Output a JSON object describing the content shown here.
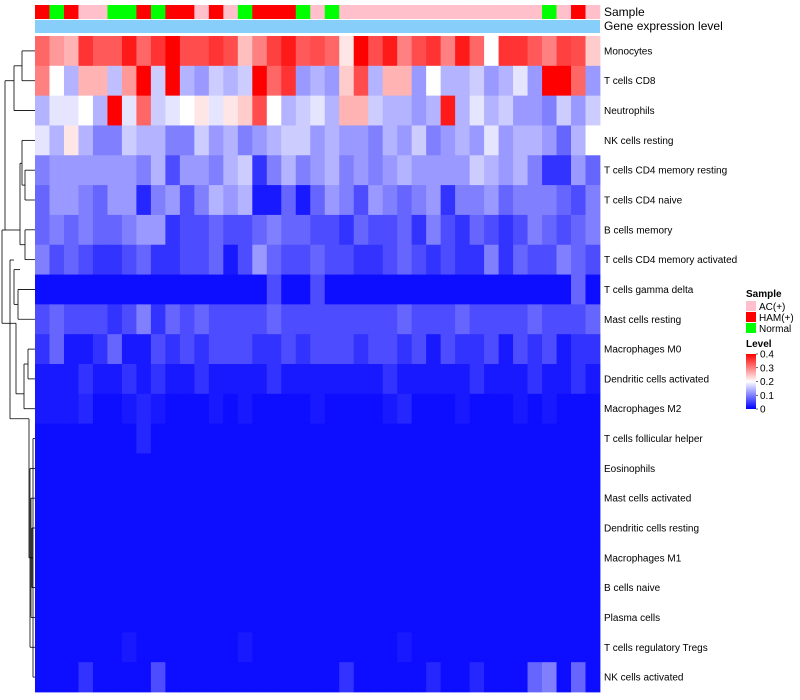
{
  "chart_data": {
    "type": "heatmap",
    "annotation_rows": [
      "Sample",
      "Gene expression level"
    ],
    "sample_legend": {
      "title": "Sample",
      "entries": [
        {
          "label": "AC(+)",
          "color": "#ffc0cb"
        },
        {
          "label": "HAM(+)",
          "color": "#ff0000"
        },
        {
          "label": "Normal",
          "color": "#00ff00"
        }
      ]
    },
    "sample_groups": [
      "HAM(+)",
      "Normal",
      "HAM(+)",
      "AC(+)",
      "AC(+)",
      "Normal",
      "Normal",
      "HAM(+)",
      "Normal",
      "HAM(+)",
      "HAM(+)",
      "AC(+)",
      "HAM(+)",
      "AC(+)",
      "Normal",
      "HAM(+)",
      "HAM(+)",
      "HAM(+)",
      "Normal",
      "AC(+)",
      "Normal",
      "AC(+)",
      "AC(+)",
      "AC(+)",
      "AC(+)",
      "AC(+)",
      "AC(+)",
      "AC(+)",
      "AC(+)",
      "AC(+)",
      "AC(+)",
      "AC(+)",
      "AC(+)",
      "AC(+)",
      "AC(+)",
      "Normal",
      "AC(+)",
      "HAM(+)",
      "AC(+)"
    ],
    "expression_bar_color": "#87cefa",
    "level_legend": {
      "title": "Level",
      "ticks": [
        "0.4",
        "0.3",
        "0.2",
        "0.1",
        "0"
      ],
      "min": 0,
      "max": 0.4,
      "colors": [
        "#0000ff",
        "#ffffff",
        "#ff0000"
      ]
    },
    "rows": [
      {
        "label": "Monocytes",
        "values": [
          0.32,
          0.28,
          0.26,
          0.36,
          0.33,
          0.33,
          0.38,
          0.32,
          0.36,
          0.4,
          0.34,
          0.34,
          0.36,
          0.34,
          0.25,
          0.3,
          0.35,
          0.38,
          0.33,
          0.34,
          0.32,
          0.22,
          0.4,
          0.34,
          0.38,
          0.3,
          0.34,
          0.36,
          0.3,
          0.38,
          0.32,
          0.2,
          0.36,
          0.36,
          0.33,
          0.3,
          0.35,
          0.34,
          0.24
        ]
      },
      {
        "label": "T cells CD8",
        "values": [
          0.3,
          0.2,
          0.14,
          0.26,
          0.26,
          0.15,
          0.28,
          0.4,
          0.16,
          0.4,
          0.14,
          0.12,
          0.16,
          0.14,
          0.16,
          0.4,
          0.32,
          0.36,
          0.12,
          0.14,
          0.12,
          0.24,
          0.34,
          0.14,
          0.26,
          0.26,
          0.12,
          0.2,
          0.14,
          0.14,
          0.16,
          0.12,
          0.14,
          0.18,
          0.12,
          0.4,
          0.4,
          0.32,
          0.12
        ]
      },
      {
        "label": "Neutrophils",
        "values": [
          0.14,
          0.18,
          0.18,
          0.2,
          0.14,
          0.4,
          0.18,
          0.32,
          0.16,
          0.18,
          0.2,
          0.22,
          0.18,
          0.22,
          0.24,
          0.34,
          0.2,
          0.14,
          0.16,
          0.18,
          0.14,
          0.26,
          0.26,
          0.16,
          0.14,
          0.14,
          0.12,
          0.14,
          0.38,
          0.14,
          0.18,
          0.14,
          0.16,
          0.12,
          0.12,
          0.1,
          0.16,
          0.12,
          0.16
        ]
      },
      {
        "label": "NK cells resting",
        "values": [
          0.18,
          0.14,
          0.22,
          0.14,
          0.1,
          0.1,
          0.16,
          0.14,
          0.14,
          0.1,
          0.1,
          0.16,
          0.12,
          0.14,
          0.1,
          0.12,
          0.14,
          0.16,
          0.16,
          0.12,
          0.14,
          0.12,
          0.12,
          0.1,
          0.14,
          0.12,
          0.16,
          0.1,
          0.12,
          0.14,
          0.12,
          0.18,
          0.12,
          0.14,
          0.14,
          0.12,
          0.08,
          0.14,
          0.2
        ]
      },
      {
        "label": "T cells CD4 memory resting",
        "values": [
          0.1,
          0.12,
          0.12,
          0.12,
          0.12,
          0.12,
          0.12,
          0.1,
          0.14,
          0.06,
          0.12,
          0.12,
          0.1,
          0.14,
          0.16,
          0.04,
          0.1,
          0.14,
          0.1,
          0.12,
          0.14,
          0.1,
          0.12,
          0.1,
          0.12,
          0.14,
          0.12,
          0.12,
          0.12,
          0.12,
          0.16,
          0.14,
          0.12,
          0.14,
          0.1,
          0.04,
          0.04,
          0.12,
          0.08
        ]
      },
      {
        "label": "T cells CD4 naive",
        "values": [
          0.08,
          0.12,
          0.12,
          0.1,
          0.08,
          0.12,
          0.12,
          0.03,
          0.1,
          0.12,
          0.06,
          0.1,
          0.14,
          0.12,
          0.14,
          0.02,
          0.02,
          0.08,
          0.02,
          0.08,
          0.12,
          0.1,
          0.06,
          0.12,
          0.1,
          0.08,
          0.1,
          0.12,
          0.04,
          0.1,
          0.1,
          0.12,
          0.08,
          0.1,
          0.1,
          0.1,
          0.08,
          0.06,
          0.1
        ]
      },
      {
        "label": "B cells memory",
        "values": [
          0.08,
          0.1,
          0.08,
          0.1,
          0.08,
          0.08,
          0.1,
          0.12,
          0.12,
          0.04,
          0.06,
          0.06,
          0.08,
          0.06,
          0.06,
          0.08,
          0.1,
          0.08,
          0.08,
          0.06,
          0.06,
          0.04,
          0.08,
          0.06,
          0.06,
          0.08,
          0.04,
          0.1,
          0.06,
          0.04,
          0.08,
          0.06,
          0.04,
          0.06,
          0.1,
          0.08,
          0.06,
          0.08,
          0.1
        ]
      },
      {
        "label": "T cells CD4 memory activated",
        "values": [
          0.1,
          0.06,
          0.08,
          0.06,
          0.04,
          0.04,
          0.06,
          0.08,
          0.04,
          0.04,
          0.06,
          0.06,
          0.08,
          0.02,
          0.06,
          0.12,
          0.08,
          0.06,
          0.06,
          0.08,
          0.06,
          0.06,
          0.04,
          0.04,
          0.06,
          0.08,
          0.06,
          0.04,
          0.06,
          0.04,
          0.04,
          0.1,
          0.04,
          0.08,
          0.06,
          0.06,
          0.1,
          0.08,
          0.06
        ]
      },
      {
        "label": "T cells gamma delta",
        "values": [
          0.01,
          0.01,
          0.01,
          0.01,
          0.01,
          0.01,
          0.01,
          0.01,
          0.01,
          0.01,
          0.01,
          0.01,
          0.01,
          0.01,
          0.01,
          0.01,
          0.06,
          0.01,
          0.01,
          0.06,
          0.01,
          0.01,
          0.01,
          0.01,
          0.01,
          0.01,
          0.01,
          0.01,
          0.01,
          0.01,
          0.01,
          0.01,
          0.01,
          0.01,
          0.01,
          0.01,
          0.01,
          0.08,
          0.01
        ]
      },
      {
        "label": "Mast cells resting",
        "values": [
          0.06,
          0.08,
          0.06,
          0.06,
          0.06,
          0.04,
          0.06,
          0.1,
          0.04,
          0.08,
          0.06,
          0.08,
          0.06,
          0.06,
          0.06,
          0.06,
          0.08,
          0.06,
          0.06,
          0.06,
          0.06,
          0.06,
          0.06,
          0.06,
          0.06,
          0.08,
          0.06,
          0.06,
          0.06,
          0.08,
          0.06,
          0.06,
          0.06,
          0.06,
          0.08,
          0.06,
          0.06,
          0.06,
          0.08
        ]
      },
      {
        "label": "Macrophages M0",
        "values": [
          0.04,
          0.08,
          0.02,
          0.02,
          0.04,
          0.08,
          0.02,
          0.02,
          0.06,
          0.04,
          0.06,
          0.04,
          0.06,
          0.06,
          0.06,
          0.04,
          0.04,
          0.06,
          0.04,
          0.06,
          0.06,
          0.06,
          0.04,
          0.06,
          0.06,
          0.04,
          0.06,
          0.02,
          0.06,
          0.04,
          0.04,
          0.06,
          0.02,
          0.06,
          0.04,
          0.06,
          0.02,
          0.04,
          0.04
        ]
      },
      {
        "label": "Dendritic cells activated",
        "values": [
          0.02,
          0.02,
          0.02,
          0.04,
          0.02,
          0.02,
          0.04,
          0.02,
          0.04,
          0.02,
          0.02,
          0.04,
          0.02,
          0.02,
          0.02,
          0.02,
          0.04,
          0.02,
          0.02,
          0.02,
          0.02,
          0.02,
          0.02,
          0.02,
          0.04,
          0.02,
          0.02,
          0.02,
          0.02,
          0.02,
          0.04,
          0.02,
          0.02,
          0.02,
          0.04,
          0.02,
          0.02,
          0.04,
          0.02
        ]
      },
      {
        "label": "Macrophages M2",
        "values": [
          0.02,
          0.02,
          0.02,
          0.03,
          0.01,
          0.01,
          0.02,
          0.03,
          0.02,
          0.01,
          0.01,
          0.01,
          0.02,
          0.01,
          0.02,
          0.01,
          0.01,
          0.01,
          0.01,
          0.02,
          0.01,
          0.01,
          0.01,
          0.01,
          0.02,
          0.03,
          0.01,
          0.01,
          0.01,
          0.02,
          0.01,
          0.01,
          0.01,
          0.02,
          0.01,
          0.02,
          0.01,
          0.01,
          0.01
        ]
      },
      {
        "label": "T cells follicular helper",
        "values": [
          0.01,
          0.01,
          0.01,
          0.01,
          0.01,
          0.01,
          0.01,
          0.03,
          0.01,
          0.01,
          0.01,
          0.01,
          0.01,
          0.01,
          0.01,
          0.01,
          0.01,
          0.01,
          0.01,
          0.01,
          0.01,
          0.01,
          0.01,
          0.01,
          0.01,
          0.01,
          0.01,
          0.01,
          0.01,
          0.01,
          0.01,
          0.01,
          0.01,
          0.01,
          0.01,
          0.01,
          0.01,
          0.01,
          0.01
        ]
      },
      {
        "label": "Eosinophils",
        "values": [
          0.01,
          0.01,
          0.01,
          0.01,
          0.01,
          0.01,
          0.01,
          0.01,
          0.01,
          0.01,
          0.01,
          0.01,
          0.01,
          0.01,
          0.01,
          0.01,
          0.01,
          0.01,
          0.01,
          0.01,
          0.01,
          0.01,
          0.01,
          0.01,
          0.01,
          0.01,
          0.01,
          0.01,
          0.01,
          0.01,
          0.01,
          0.01,
          0.01,
          0.01,
          0.01,
          0.01,
          0.01,
          0.01,
          0.01
        ]
      },
      {
        "label": "Mast cells activated",
        "values": [
          0.01,
          0.01,
          0.01,
          0.01,
          0.01,
          0.01,
          0.01,
          0.01,
          0.01,
          0.01,
          0.01,
          0.01,
          0.01,
          0.01,
          0.01,
          0.01,
          0.01,
          0.01,
          0.01,
          0.01,
          0.01,
          0.01,
          0.01,
          0.01,
          0.01,
          0.01,
          0.01,
          0.01,
          0.01,
          0.01,
          0.01,
          0.01,
          0.01,
          0.01,
          0.01,
          0.01,
          0.01,
          0.01,
          0.01
        ]
      },
      {
        "label": "Dendritic cells resting",
        "values": [
          0.01,
          0.01,
          0.01,
          0.01,
          0.01,
          0.01,
          0.01,
          0.01,
          0.01,
          0.01,
          0.01,
          0.01,
          0.01,
          0.01,
          0.01,
          0.01,
          0.01,
          0.01,
          0.01,
          0.01,
          0.01,
          0.01,
          0.01,
          0.01,
          0.01,
          0.01,
          0.01,
          0.01,
          0.01,
          0.01,
          0.01,
          0.01,
          0.01,
          0.01,
          0.01,
          0.01,
          0.01,
          0.01,
          0.01
        ]
      },
      {
        "label": "Macrophages M1",
        "values": [
          0.01,
          0.01,
          0.01,
          0.01,
          0.01,
          0.01,
          0.01,
          0.01,
          0.01,
          0.01,
          0.01,
          0.01,
          0.01,
          0.01,
          0.01,
          0.01,
          0.01,
          0.01,
          0.01,
          0.01,
          0.01,
          0.01,
          0.01,
          0.01,
          0.01,
          0.01,
          0.01,
          0.01,
          0.01,
          0.01,
          0.01,
          0.01,
          0.01,
          0.01,
          0.01,
          0.01,
          0.01,
          0.01,
          0.01
        ]
      },
      {
        "label": "B cells naive",
        "values": [
          0.01,
          0.01,
          0.01,
          0.01,
          0.01,
          0.01,
          0.01,
          0.01,
          0.01,
          0.01,
          0.01,
          0.01,
          0.01,
          0.01,
          0.01,
          0.01,
          0.01,
          0.01,
          0.01,
          0.01,
          0.01,
          0.01,
          0.01,
          0.01,
          0.01,
          0.01,
          0.01,
          0.01,
          0.01,
          0.01,
          0.01,
          0.01,
          0.01,
          0.01,
          0.01,
          0.01,
          0.01,
          0.01,
          0.01
        ]
      },
      {
        "label": "Plasma cells",
        "values": [
          0.01,
          0.01,
          0.01,
          0.01,
          0.01,
          0.01,
          0.01,
          0.01,
          0.01,
          0.01,
          0.01,
          0.01,
          0.01,
          0.01,
          0.01,
          0.01,
          0.01,
          0.01,
          0.01,
          0.01,
          0.01,
          0.01,
          0.01,
          0.01,
          0.01,
          0.01,
          0.01,
          0.01,
          0.01,
          0.01,
          0.01,
          0.01,
          0.01,
          0.01,
          0.01,
          0.01,
          0.01,
          0.01,
          0.01
        ]
      },
      {
        "label": "T cells regulatory  Tregs",
        "values": [
          0.01,
          0.01,
          0.01,
          0.01,
          0.01,
          0.01,
          0.02,
          0.01,
          0.01,
          0.01,
          0.01,
          0.01,
          0.01,
          0.01,
          0.02,
          0.01,
          0.01,
          0.01,
          0.01,
          0.01,
          0.01,
          0.01,
          0.01,
          0.01,
          0.01,
          0.02,
          0.01,
          0.01,
          0.01,
          0.01,
          0.01,
          0.01,
          0.01,
          0.01,
          0.01,
          0.01,
          0.01,
          0.01,
          0.01
        ]
      },
      {
        "label": "NK cells activated",
        "values": [
          0.01,
          0.01,
          0.01,
          0.04,
          0.01,
          0.01,
          0.01,
          0.01,
          0.06,
          0.01,
          0.01,
          0.01,
          0.01,
          0.01,
          0.01,
          0.01,
          0.01,
          0.01,
          0.01,
          0.01,
          0.01,
          0.04,
          0.01,
          0.01,
          0.01,
          0.01,
          0.01,
          0.03,
          0.01,
          0.01,
          0.03,
          0.01,
          0.01,
          0.01,
          0.08,
          0.1,
          0.01,
          0.08,
          0.01
        ]
      }
    ]
  }
}
